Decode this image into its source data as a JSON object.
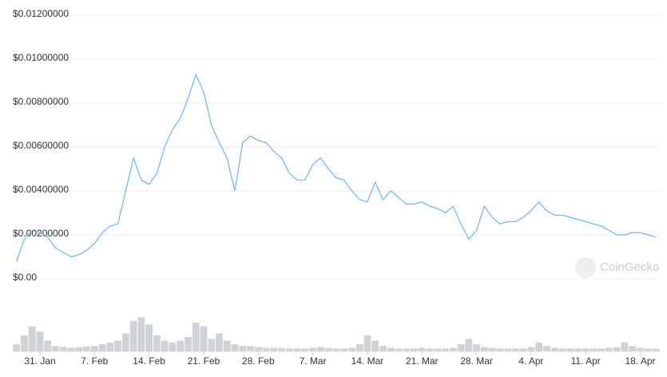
{
  "chart_data": {
    "type": "line",
    "x": [
      "28. Jan",
      "29. Jan",
      "30. Jan",
      "31. Jan",
      "1. Feb",
      "2. Feb",
      "3. Feb",
      "4. Feb",
      "5. Feb",
      "6. Feb",
      "7. Feb",
      "8. Feb",
      "9. Feb",
      "10. Feb",
      "11. Feb",
      "12. Feb",
      "13. Feb",
      "14. Feb",
      "15. Feb",
      "16. Feb",
      "17. Feb",
      "18. Feb",
      "19. Feb",
      "20. Feb",
      "21. Feb",
      "22. Feb",
      "23. Feb",
      "24. Feb",
      "25. Feb",
      "26. Feb",
      "27. Feb",
      "28. Feb",
      "1. Mar",
      "2. Mar",
      "3. Mar",
      "4. Mar",
      "5. Mar",
      "6. Mar",
      "7. Mar",
      "8. Mar",
      "9. Mar",
      "10. Mar",
      "11. Mar",
      "12. Mar",
      "13. Mar",
      "14. Mar",
      "15. Mar",
      "16. Mar",
      "17. Mar",
      "18. Mar",
      "19. Mar",
      "20. Mar",
      "21. Mar",
      "22. Mar",
      "23. Mar",
      "24. Mar",
      "25. Mar",
      "26. Mar",
      "27. Mar",
      "28. Mar",
      "29. Mar",
      "30. Mar",
      "31. Mar",
      "1. Apr",
      "2. Apr",
      "3. Apr",
      "4. Apr",
      "5. Apr",
      "6. Apr",
      "7. Apr",
      "8. Apr",
      "9. Apr",
      "10. Apr",
      "11. Apr",
      "12. Apr",
      "13. Apr",
      "14. Apr",
      "15. Apr",
      "16. Apr",
      "17. Apr",
      "18. Apr",
      "19. Apr",
      "20. Apr"
    ],
    "series": [
      {
        "name": "Price",
        "color": "#6fb3ee",
        "values": [
          0.0008,
          0.0018,
          0.0022,
          0.0021,
          0.0019,
          0.0014,
          0.0012,
          0.001,
          0.0011,
          0.0013,
          0.0016,
          0.0021,
          0.0024,
          0.0025,
          0.004,
          0.0055,
          0.0045,
          0.0043,
          0.0048,
          0.006,
          0.0068,
          0.0073,
          0.0082,
          0.0093,
          0.0085,
          0.007,
          0.0062,
          0.0055,
          0.004,
          0.0062,
          0.0065,
          0.0063,
          0.0062,
          0.0058,
          0.0055,
          0.0048,
          0.0045,
          0.0045,
          0.0052,
          0.0055,
          0.005,
          0.0046,
          0.0045,
          0.004,
          0.0036,
          0.0035,
          0.0044,
          0.0036,
          0.004,
          0.0037,
          0.0034,
          0.0034,
          0.0035,
          0.0033,
          0.0032,
          0.003,
          0.0033,
          0.0025,
          0.0018,
          0.0022,
          0.0033,
          0.0028,
          0.0025,
          0.0026,
          0.0026,
          0.0028,
          0.0031,
          0.0035,
          0.0031,
          0.0029,
          0.0029,
          0.0028,
          0.0027,
          0.0026,
          0.0025,
          0.0024,
          0.0022,
          0.002,
          0.002,
          0.0021,
          0.0021,
          0.002,
          0.0019
        ]
      },
      {
        "name": "Volume",
        "color": "#cfd3d8",
        "axis": "y2",
        "values": [
          20,
          45,
          70,
          55,
          30,
          15,
          12,
          10,
          12,
          14,
          15,
          20,
          25,
          30,
          50,
          85,
          95,
          75,
          45,
          30,
          25,
          30,
          40,
          80,
          70,
          35,
          50,
          30,
          20,
          15,
          15,
          12,
          10,
          10,
          10,
          8,
          8,
          8,
          10,
          12,
          10,
          8,
          8,
          10,
          20,
          45,
          30,
          15,
          10,
          8,
          8,
          8,
          10,
          8,
          8,
          8,
          10,
          20,
          35,
          20,
          12,
          10,
          8,
          8,
          8,
          8,
          12,
          25,
          15,
          10,
          8,
          8,
          8,
          8,
          8,
          8,
          10,
          12,
          25,
          15,
          10,
          8,
          8
        ]
      }
    ],
    "xticks": [
      "31. Jan",
      "7. Feb",
      "14. Feb",
      "21. Feb",
      "28. Feb",
      "7. Mar",
      "14. Mar",
      "21. Mar",
      "28. Mar",
      "4. Apr",
      "11. Apr",
      "18. Apr"
    ],
    "ylim": [
      0,
      0.012
    ],
    "yticks": [
      {
        "value": 0,
        "label": "$0.00"
      },
      {
        "value": 0.002,
        "label": "$0.00200000"
      },
      {
        "value": 0.004,
        "label": "$0.00400000"
      },
      {
        "value": 0.006,
        "label": "$0.00600000"
      },
      {
        "value": 0.008,
        "label": "$0.00800000"
      },
      {
        "value": 0.01,
        "label": "$0.01000000"
      },
      {
        "value": 0.012,
        "label": "$0.01200000"
      }
    ],
    "y2lim": [
      0,
      100
    ],
    "grid": true,
    "watermark": "CoinGecko"
  }
}
